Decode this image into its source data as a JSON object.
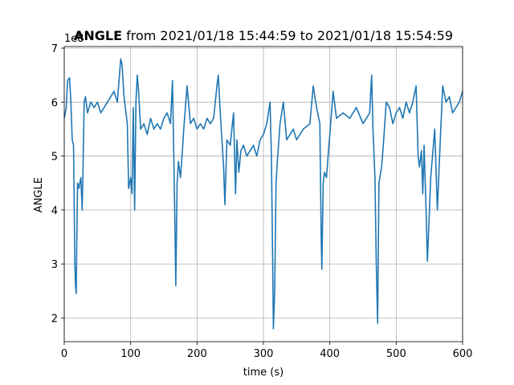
{
  "chart_data": {
    "type": "line",
    "title": "ANGLE",
    "title_suffix": "from 2021/01/18 15:44:59 to 2021/01/18 15:54:59",
    "x_label": "time (s)",
    "y_label": "ANGLE",
    "y_offset_label": "1e8",
    "xlim": [
      0,
      600
    ],
    "ylim": [
      1.56,
      7.03
    ],
    "xticks": [
      0,
      100,
      200,
      300,
      400,
      500,
      600
    ],
    "yticks": [
      2,
      3,
      4,
      5,
      6,
      7
    ],
    "grid": true,
    "x": [
      0,
      3,
      5,
      8,
      10,
      12,
      14,
      16,
      17,
      18,
      19,
      20,
      22,
      25,
      27,
      28,
      30,
      32,
      35,
      40,
      45,
      50,
      55,
      60,
      65,
      70,
      75,
      80,
      85,
      87,
      90,
      95,
      97,
      100,
      102,
      104,
      106,
      108,
      110,
      112,
      115,
      120,
      125,
      130,
      135,
      140,
      145,
      150,
      155,
      160,
      163,
      165,
      167,
      168,
      170,
      172,
      175,
      178,
      180,
      185,
      190,
      195,
      200,
      205,
      210,
      215,
      220,
      225,
      230,
      232,
      235,
      238,
      240,
      242,
      245,
      250,
      255,
      258,
      260,
      263,
      266,
      270,
      275,
      280,
      285,
      290,
      295,
      300,
      305,
      310,
      312,
      314,
      315,
      317,
      319,
      321,
      325,
      330,
      335,
      340,
      345,
      350,
      360,
      370,
      375,
      380,
      385,
      387,
      388,
      390,
      392,
      395,
      398,
      400,
      405,
      410,
      420,
      430,
      440,
      450,
      460,
      463,
      465,
      468,
      470,
      472,
      474,
      478,
      480,
      485,
      490,
      495,
      500,
      505,
      510,
      515,
      520,
      525,
      530,
      533,
      535,
      538,
      540,
      542,
      545,
      547,
      552,
      558,
      562,
      565,
      570,
      575,
      580,
      585,
      590,
      595,
      600
    ],
    "series": [
      {
        "name": "ANGLE",
        "color": "#1f77b4",
        "values": [
          5.7,
          5.9,
          6.4,
          6.45,
          6.0,
          5.3,
          5.2,
          3.0,
          2.6,
          2.45,
          3.5,
          4.5,
          4.4,
          4.6,
          4.0,
          4.6,
          6.0,
          6.1,
          5.8,
          6.0,
          5.9,
          6.0,
          5.8,
          5.9,
          6.0,
          6.1,
          6.2,
          6.0,
          6.8,
          6.7,
          6.1,
          5.6,
          4.4,
          4.6,
          4.3,
          5.9,
          4.0,
          6.0,
          6.5,
          6.2,
          5.5,
          5.6,
          5.4,
          5.7,
          5.5,
          5.6,
          5.5,
          5.7,
          5.8,
          5.6,
          6.4,
          5.0,
          3.5,
          2.6,
          4.5,
          4.9,
          4.6,
          5.1,
          5.5,
          6.3,
          5.6,
          5.7,
          5.5,
          5.6,
          5.5,
          5.7,
          5.6,
          5.7,
          6.3,
          6.5,
          5.8,
          5.2,
          4.8,
          4.1,
          5.3,
          5.2,
          5.8,
          4.3,
          5.3,
          4.7,
          5.1,
          5.2,
          5.0,
          5.1,
          5.2,
          5.0,
          5.3,
          5.4,
          5.6,
          6.0,
          5.0,
          3.0,
          1.8,
          2.5,
          4.5,
          4.9,
          5.6,
          6.0,
          5.3,
          5.4,
          5.5,
          5.3,
          5.5,
          5.6,
          6.3,
          5.9,
          5.6,
          3.5,
          2.9,
          4.5,
          4.7,
          4.6,
          5.1,
          5.4,
          6.2,
          5.7,
          5.8,
          5.7,
          5.9,
          5.6,
          5.8,
          6.5,
          5.5,
          4.6,
          3.0,
          1.9,
          4.5,
          4.8,
          5.1,
          6.0,
          5.9,
          5.6,
          5.8,
          5.9,
          5.7,
          6.0,
          5.8,
          6.0,
          6.3,
          5.0,
          4.8,
          5.1,
          4.3,
          5.2,
          4.0,
          3.05,
          4.6,
          5.5,
          4.0,
          4.9,
          6.3,
          6.0,
          6.1,
          5.8,
          5.9,
          6.0,
          6.2
        ]
      }
    ]
  }
}
